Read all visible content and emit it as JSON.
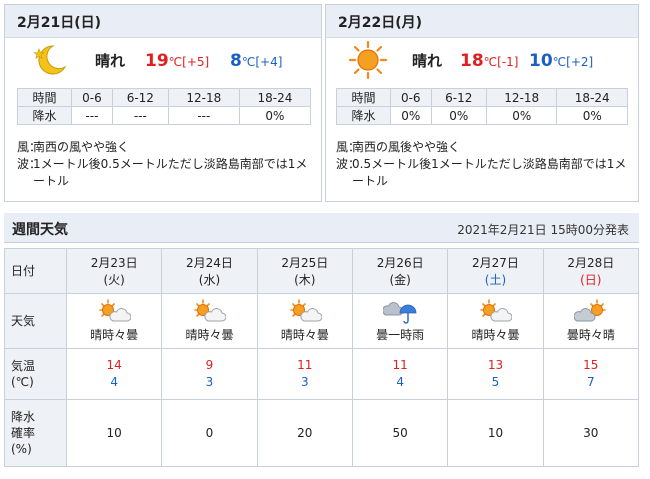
{
  "today": {
    "date": "2月21日(日)",
    "condition": "晴れ",
    "icon": "crescent-moon-star-icon",
    "high": "19",
    "high_diff": "[+5]",
    "low": "8",
    "low_diff": "[+4]",
    "unit": "℃",
    "rain_header": [
      "時間",
      "0-6",
      "6-12",
      "12-18",
      "18-24"
    ],
    "rain_label": "降水",
    "rain_values": [
      "---",
      "---",
      "---",
      "0%"
    ],
    "wind_label": "風：",
    "wind": "南西の風やや強く",
    "wave_label": "波：",
    "wave": "1メートル後0.5メートルただし淡路島南部では1メートル"
  },
  "tomorrow": {
    "date": "2月22日(月)",
    "condition": "晴れ",
    "icon": "sun-icon",
    "high": "18",
    "high_diff": "[-1]",
    "low": "10",
    "low_diff": "[+2]",
    "unit": "℃",
    "rain_header": [
      "時間",
      "0-6",
      "6-12",
      "12-18",
      "18-24"
    ],
    "rain_label": "降水",
    "rain_values": [
      "0%",
      "0%",
      "0%",
      "0%"
    ],
    "wind_label": "風：",
    "wind": "南西の風後やや強く",
    "wave_label": "波：",
    "wave": "0.5メートル後1メートルただし淡路島南部では1メートル"
  },
  "weekly": {
    "title": "週間天気",
    "issued": "2021年2月21日 15時00分発表",
    "row_labels": {
      "date": "日付",
      "weather": "天気",
      "temp": "気温\n(℃)",
      "pop": "降水\n確率\n(%)"
    },
    "days": [
      {
        "date": "2月23日",
        "wd": "(火)",
        "wd_type": "weekday",
        "weather": "晴時々曇",
        "icon": "sun-cloud-icon",
        "high": "14",
        "low": "4",
        "pop": "10"
      },
      {
        "date": "2月24日",
        "wd": "(水)",
        "wd_type": "weekday",
        "weather": "晴時々曇",
        "icon": "sun-cloud-icon",
        "high": "9",
        "low": "3",
        "pop": "0"
      },
      {
        "date": "2月25日",
        "wd": "(木)",
        "wd_type": "weekday",
        "weather": "晴時々曇",
        "icon": "sun-cloud-icon",
        "high": "11",
        "low": "3",
        "pop": "20"
      },
      {
        "date": "2月26日",
        "wd": "(金)",
        "wd_type": "weekday",
        "weather": "曇一時雨",
        "icon": "cloud-umbrella-icon",
        "high": "11",
        "low": "4",
        "pop": "50"
      },
      {
        "date": "2月27日",
        "wd": "(土)",
        "wd_type": "saturday",
        "weather": "晴時々曇",
        "icon": "sun-cloud-icon",
        "high": "13",
        "low": "5",
        "pop": "10"
      },
      {
        "date": "2月28日",
        "wd": "(日)",
        "wd_type": "sunday",
        "weather": "曇時々晴",
        "icon": "cloud-sun-icon",
        "high": "15",
        "low": "7",
        "pop": "30"
      }
    ]
  },
  "colors": {
    "high": "#e02020",
    "low": "#1a5fc4",
    "header_bg": "#e9eef6",
    "sun": "#f08a1c"
  }
}
